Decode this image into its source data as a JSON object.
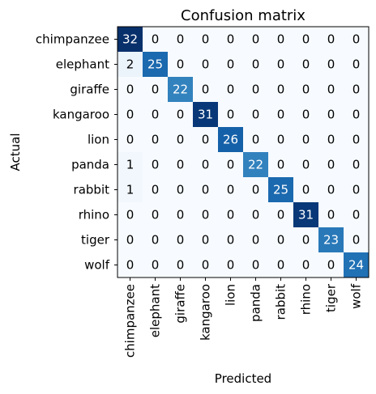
{
  "chart_data": {
    "type": "heatmap",
    "title": "Confusion matrix",
    "xlabel": "Predicted",
    "ylabel": "Actual",
    "x_categories": [
      "chimpanzee",
      "elephant",
      "giraffe",
      "kangaroo",
      "lion",
      "panda",
      "rabbit",
      "rhino",
      "tiger",
      "wolf"
    ],
    "y_categories": [
      "chimpanzee",
      "elephant",
      "giraffe",
      "kangaroo",
      "lion",
      "panda",
      "rabbit",
      "rhino",
      "tiger",
      "wolf"
    ],
    "values": [
      [
        32,
        0,
        0,
        0,
        0,
        0,
        0,
        0,
        0,
        0
      ],
      [
        2,
        25,
        0,
        0,
        0,
        0,
        0,
        0,
        0,
        0
      ],
      [
        0,
        0,
        22,
        0,
        0,
        0,
        0,
        0,
        0,
        0
      ],
      [
        0,
        0,
        0,
        31,
        0,
        0,
        0,
        0,
        0,
        0
      ],
      [
        0,
        0,
        0,
        0,
        26,
        0,
        0,
        0,
        0,
        0
      ],
      [
        1,
        0,
        0,
        0,
        0,
        22,
        0,
        0,
        0,
        0
      ],
      [
        1,
        0,
        0,
        0,
        0,
        0,
        25,
        0,
        0,
        0
      ],
      [
        0,
        0,
        0,
        0,
        0,
        0,
        0,
        31,
        0,
        0
      ],
      [
        0,
        0,
        0,
        0,
        0,
        0,
        0,
        0,
        23,
        0
      ],
      [
        0,
        0,
        0,
        0,
        0,
        0,
        0,
        0,
        0,
        24
      ]
    ],
    "colormap": "Blues",
    "grid": false
  }
}
